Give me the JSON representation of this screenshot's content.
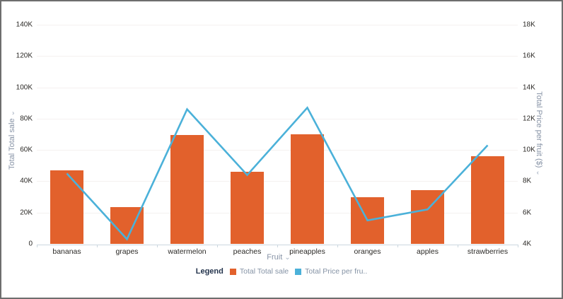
{
  "page": {
    "background": "#ffffff",
    "border_color": "#6e6e6e",
    "gridline_color": "#f4f1f0",
    "axis_line_color": "#ccd7df"
  },
  "icons": {
    "chevron_down": "⌄"
  },
  "axes": {
    "left_title": "Total Total sale",
    "right_title": "Total Price per fruit ($)",
    "x_title": "Fruit"
  },
  "legend": {
    "label": "Legend",
    "entries": [
      {
        "label": "Total Total sale",
        "color": "#e2612c"
      },
      {
        "label": "Total Price per fru..",
        "color": "#4bb1d9"
      }
    ]
  },
  "chart_data": {
    "type": "bar",
    "title": "",
    "xlabel": "Fruit",
    "ylabel_left": "Total Total sale",
    "ylabel_right": "Total Price per fruit ($)",
    "grid": true,
    "legend_position": "bottom",
    "categories": [
      "bananas",
      "grapes",
      "watermelon",
      "peaches",
      "pineapples",
      "oranges",
      "apples",
      "strawberries"
    ],
    "series": [
      {
        "name": "Total Total sale",
        "type": "bar",
        "axis": "left",
        "color": "#e2612c",
        "values": [
          47000,
          23500,
          69500,
          46000,
          70000,
          30000,
          34500,
          56000
        ]
      },
      {
        "name": "Total Price per fruit ($)",
        "type": "line",
        "axis": "right",
        "color": "#4bb1d9",
        "values": [
          8500,
          4300,
          12600,
          8400,
          12700,
          5500,
          6200,
          10300
        ]
      }
    ],
    "left_axis": {
      "min": 0,
      "max": 140000,
      "tick_labels": [
        "0",
        "20K",
        "40K",
        "60K",
        "80K",
        "100K",
        "120K",
        "140K"
      ]
    },
    "right_axis": {
      "min": 4000,
      "max": 18000,
      "tick_labels": [
        "4K",
        "6K",
        "8K",
        "10K",
        "12K",
        "14K",
        "16K",
        "18K"
      ]
    }
  }
}
